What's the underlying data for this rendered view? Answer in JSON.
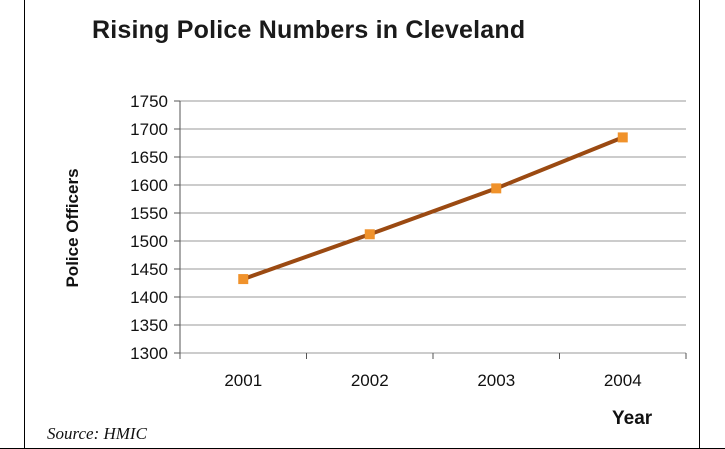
{
  "chart_data": {
    "type": "line",
    "title": "Rising Police Numbers in Cleveland",
    "xlabel": "Year",
    "ylabel": "Police Officers",
    "x": [
      "2001",
      "2002",
      "2003",
      "2004"
    ],
    "series": [
      {
        "values": [
          1432,
          1512,
          1594,
          1685
        ]
      }
    ],
    "ylim": [
      1300,
      1750
    ],
    "yticks": [
      "1750",
      "1700",
      "1650",
      "1600",
      "1550",
      "1500",
      "1450",
      "1400",
      "1350",
      "1300"
    ],
    "grid": true,
    "colors": {
      "line": "#9b4a12",
      "marker": "#f0922b",
      "grid": "#9a9a9a"
    }
  },
  "source": "Source: HMIC"
}
